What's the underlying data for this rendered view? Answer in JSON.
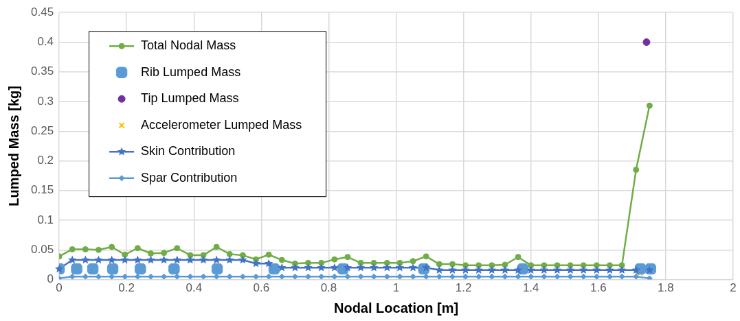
{
  "chart_data": {
    "type": "line",
    "xlabel": "Nodal Location [m]",
    "ylabel": "Lumped Mass [kg]",
    "x": [
      0,
      0.039,
      0.078,
      0.117,
      0.156,
      0.195,
      0.233,
      0.272,
      0.311,
      0.35,
      0.389,
      0.428,
      0.467,
      0.506,
      0.545,
      0.584,
      0.622,
      0.661,
      0.7,
      0.739,
      0.778,
      0.817,
      0.856,
      0.895,
      0.934,
      0.973,
      1.011,
      1.05,
      1.089,
      1.128,
      1.167,
      1.206,
      1.245,
      1.284,
      1.323,
      1.362,
      1.4,
      1.439,
      1.478,
      1.517,
      1.556,
      1.595,
      1.634,
      1.67,
      1.712,
      1.752
    ],
    "series": [
      {
        "name": "Total Nodal Mass",
        "marker": "circle",
        "color": "#70ad47",
        "values": [
          0.039,
          0.051,
          0.051,
          0.05,
          0.055,
          0.042,
          0.053,
          0.044,
          0.045,
          0.053,
          0.041,
          0.041,
          0.055,
          0.043,
          0.041,
          0.034,
          0.042,
          0.033,
          0.027,
          0.028,
          0.028,
          0.034,
          0.038,
          0.028,
          0.028,
          0.028,
          0.028,
          0.031,
          0.039,
          0.026,
          0.026,
          0.024,
          0.024,
          0.024,
          0.025,
          0.038,
          0.024,
          0.024,
          0.024,
          0.024,
          0.024,
          0.024,
          0.024,
          0.024,
          0.185,
          0.293
        ]
      },
      {
        "name": "Rib Lumped Mass",
        "type": "scatter",
        "marker": "square",
        "color": "#5b9bd5",
        "x": [
          0,
          0.052,
          0.1,
          0.159,
          0.241,
          0.341,
          0.469,
          0.638,
          0.842,
          1.082,
          1.376,
          1.725,
          1.755
        ],
        "values": [
          0.018,
          0.018,
          0.018,
          0.018,
          0.018,
          0.018,
          0.018,
          0.018,
          0.018,
          0.018,
          0.018,
          0.018,
          0.018
        ]
      },
      {
        "name": "Tip Lumped Mass",
        "type": "scatter",
        "marker": "circle",
        "color": "#7030a0",
        "x": [
          1.743
        ],
        "values": [
          0.4
        ]
      },
      {
        "name": "Accelerometer Lumped Mass",
        "type": "scatter",
        "marker": "cross",
        "color": "#ffc000",
        "x": [
          1.724
        ],
        "values": [
          0.011
        ]
      },
      {
        "name": "Skin Contribution",
        "marker": "star",
        "color": "#4472c4",
        "values": [
          0.018,
          0.033,
          0.033,
          0.033,
          0.033,
          0.033,
          0.033,
          0.033,
          0.033,
          0.033,
          0.033,
          0.033,
          0.033,
          0.033,
          0.033,
          0.027,
          0.027,
          0.02,
          0.02,
          0.02,
          0.02,
          0.02,
          0.02,
          0.02,
          0.02,
          0.02,
          0.02,
          0.02,
          0.02,
          0.016,
          0.016,
          0.016,
          0.016,
          0.016,
          0.016,
          0.016,
          0.016,
          0.016,
          0.016,
          0.016,
          0.016,
          0.016,
          0.016,
          0.016,
          0.016,
          0.016
        ]
      },
      {
        "name": "Spar Contribution",
        "marker": "diamond",
        "color": "#5b9bd5",
        "values": [
          0.002,
          0.005,
          0.005,
          0.005,
          0.005,
          0.005,
          0.005,
          0.005,
          0.005,
          0.005,
          0.005,
          0.005,
          0.005,
          0.005,
          0.005,
          0.005,
          0.005,
          0.005,
          0.005,
          0.005,
          0.005,
          0.005,
          0.005,
          0.005,
          0.005,
          0.005,
          0.005,
          0.005,
          0.005,
          0.005,
          0.005,
          0.005,
          0.005,
          0.005,
          0.005,
          0.005,
          0.005,
          0.005,
          0.005,
          0.005,
          0.005,
          0.005,
          0.005,
          0.005,
          0.005,
          0.002
        ]
      }
    ],
    "xlim": [
      0,
      2
    ],
    "xticks": [
      0,
      0.2,
      0.4,
      0.6,
      0.8,
      1,
      1.2,
      1.4,
      1.6,
      1.8,
      2
    ],
    "ylim": [
      0,
      0.45
    ],
    "yticks": [
      0,
      0.05,
      0.1,
      0.15,
      0.2,
      0.25,
      0.3,
      0.35,
      0.4,
      0.45
    ],
    "grid": true,
    "legend": "top left"
  }
}
